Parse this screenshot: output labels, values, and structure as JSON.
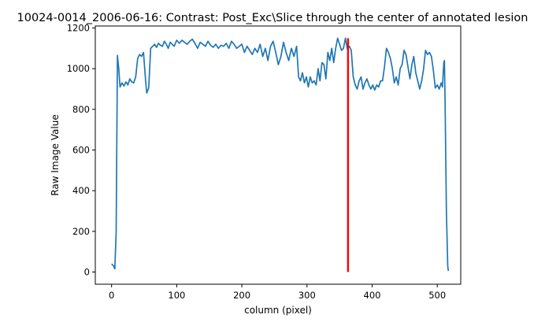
{
  "chart_data": {
    "type": "line",
    "title": "10024-0014_2006-06-16: Contrast: Post_Exc\\Slice through the center of annotated lesion",
    "xlabel": "column (pixel)",
    "ylabel": "Raw Image Value",
    "xlim": [
      -25,
      536
    ],
    "ylim": [
      -60,
      1210
    ],
    "x_ticks": [
      0,
      100,
      200,
      300,
      400,
      500
    ],
    "y_ticks": [
      0,
      200,
      400,
      600,
      800,
      1000,
      1200
    ],
    "grid": false,
    "legend": "none",
    "series": [
      {
        "color": "#1f77b4",
        "points": [
          [
            0,
            40
          ],
          [
            3,
            30
          ],
          [
            5,
            15
          ],
          [
            7,
            200
          ],
          [
            9,
            1065
          ],
          [
            11,
            1000
          ],
          [
            13,
            910
          ],
          [
            16,
            930
          ],
          [
            19,
            915
          ],
          [
            22,
            935
          ],
          [
            25,
            920
          ],
          [
            28,
            950
          ],
          [
            31,
            935
          ],
          [
            34,
            930
          ],
          [
            37,
            960
          ],
          [
            40,
            1050
          ],
          [
            43,
            1070
          ],
          [
            46,
            1060
          ],
          [
            49,
            1080
          ],
          [
            52,
            950
          ],
          [
            54,
            880
          ],
          [
            57,
            905
          ],
          [
            60,
            1100
          ],
          [
            63,
            1110
          ],
          [
            66,
            1120
          ],
          [
            69,
            1105
          ],
          [
            72,
            1125
          ],
          [
            75,
            1115
          ],
          [
            78,
            1110
          ],
          [
            81,
            1135
          ],
          [
            84,
            1120
          ],
          [
            87,
            1100
          ],
          [
            90,
            1130
          ],
          [
            93,
            1120
          ],
          [
            96,
            1110
          ],
          [
            100,
            1140
          ],
          [
            104,
            1125
          ],
          [
            108,
            1140
          ],
          [
            112,
            1130
          ],
          [
            116,
            1120
          ],
          [
            120,
            1135
          ],
          [
            124,
            1145
          ],
          [
            128,
            1125
          ],
          [
            132,
            1100
          ],
          [
            136,
            1130
          ],
          [
            140,
            1120
          ],
          [
            144,
            1110
          ],
          [
            148,
            1135
          ],
          [
            152,
            1115
          ],
          [
            156,
            1105
          ],
          [
            160,
            1120
          ],
          [
            164,
            1100
          ],
          [
            168,
            1115
          ],
          [
            172,
            1110
          ],
          [
            176,
            1125
          ],
          [
            180,
            1100
          ],
          [
            184,
            1135
          ],
          [
            188,
            1120
          ],
          [
            192,
            1100
          ],
          [
            196,
            1110
          ],
          [
            200,
            1120
          ],
          [
            204,
            1080
          ],
          [
            208,
            1110
          ],
          [
            212,
            1090
          ],
          [
            216,
            1070
          ],
          [
            220,
            1100
          ],
          [
            224,
            1080
          ],
          [
            228,
            1120
          ],
          [
            232,
            1060
          ],
          [
            236,
            1100
          ],
          [
            240,
            1040
          ],
          [
            244,
            1110
          ],
          [
            248,
            1135
          ],
          [
            252,
            1080
          ],
          [
            256,
            1020
          ],
          [
            260,
            1060
          ],
          [
            264,
            1130
          ],
          [
            268,
            1080
          ],
          [
            272,
            1040
          ],
          [
            276,
            1100
          ],
          [
            280,
            1060
          ],
          [
            284,
            1110
          ],
          [
            287,
            960
          ],
          [
            290,
            940
          ],
          [
            293,
            980
          ],
          [
            296,
            930
          ],
          [
            299,
            960
          ],
          [
            302,
            910
          ],
          [
            305,
            960
          ],
          [
            308,
            930
          ],
          [
            311,
            940
          ],
          [
            314,
            920
          ],
          [
            317,
            1000
          ],
          [
            320,
            940
          ],
          [
            323,
            1030
          ],
          [
            326,
            1020
          ],
          [
            329,
            950
          ],
          [
            332,
            1080
          ],
          [
            335,
            1040
          ],
          [
            338,
            1100
          ],
          [
            341,
            1030
          ],
          [
            344,
            1100
          ],
          [
            347,
            1150
          ],
          [
            350,
            1120
          ],
          [
            353,
            1090
          ],
          [
            356,
            1100
          ],
          [
            359,
            1150
          ],
          [
            362,
            1095
          ],
          [
            365,
            1110
          ],
          [
            368,
            1090
          ],
          [
            371,
            960
          ],
          [
            374,
            920
          ],
          [
            377,
            900
          ],
          [
            380,
            940
          ],
          [
            383,
            960
          ],
          [
            386,
            900
          ],
          [
            389,
            930
          ],
          [
            392,
            950
          ],
          [
            395,
            920
          ],
          [
            398,
            900
          ],
          [
            401,
            920
          ],
          [
            404,
            895
          ],
          [
            407,
            920
          ],
          [
            410,
            910
          ],
          [
            413,
            940
          ],
          [
            416,
            940
          ],
          [
            419,
            1010
          ],
          [
            422,
            1100
          ],
          [
            425,
            1080
          ],
          [
            428,
            1050
          ],
          [
            431,
            1000
          ],
          [
            434,
            930
          ],
          [
            437,
            960
          ],
          [
            440,
            920
          ],
          [
            443,
            1000
          ],
          [
            446,
            1020
          ],
          [
            449,
            1090
          ],
          [
            452,
            1070
          ],
          [
            455,
            1010
          ],
          [
            458,
            950
          ],
          [
            461,
            1020
          ],
          [
            464,
            1060
          ],
          [
            467,
            980
          ],
          [
            470,
            940
          ],
          [
            473,
            900
          ],
          [
            476,
            940
          ],
          [
            479,
            1000
          ],
          [
            482,
            1090
          ],
          [
            485,
            1070
          ],
          [
            488,
            1080
          ],
          [
            491,
            1060
          ],
          [
            494,
            990
          ],
          [
            497,
            905
          ],
          [
            500,
            920
          ],
          [
            503,
            900
          ],
          [
            506,
            930
          ],
          [
            508,
            910
          ],
          [
            510,
            1030
          ],
          [
            511,
            1040
          ],
          [
            512,
            850
          ],
          [
            514,
            300
          ],
          [
            516,
            30
          ],
          [
            517,
            5
          ]
        ]
      },
      {
        "color": "#ff0000",
        "points": [
          [
            363,
            0
          ],
          [
            363,
            1150
          ]
        ]
      }
    ]
  }
}
